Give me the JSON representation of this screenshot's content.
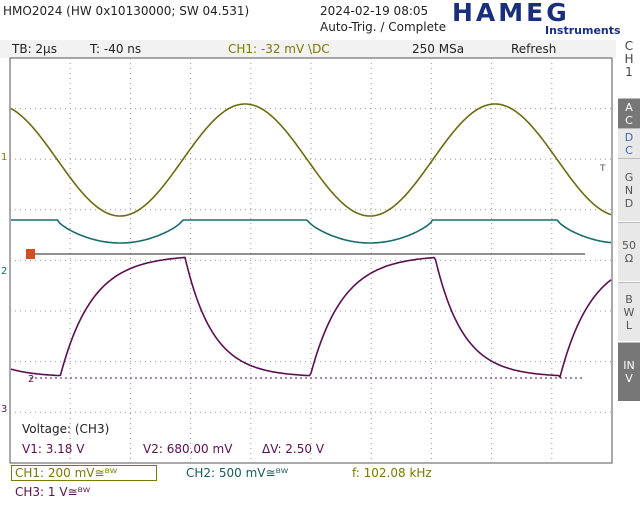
{
  "header": {
    "model": "HMO2024 (HW 0x10130000; SW 04.531)",
    "datetime": "2024-02-19 08:05",
    "trigger_status": "Auto-Trig. / Complete",
    "logo": "HAMEG",
    "logo_sub": "Instruments"
  },
  "status": {
    "timebase": "TB: 2µs",
    "trigger_time": "T: -40 ns",
    "ch1_trigger": "CH1: -32 mV \\DC",
    "sample_rate": "250 MSa",
    "mode": "Refresh"
  },
  "side_menu": {
    "channel": "CH1",
    "items": [
      "AC",
      "DC",
      "GND",
      "50Ω",
      "BWL",
      "INV"
    ]
  },
  "markers": {
    "ch1": "1",
    "ch2": "2",
    "ch3": "3",
    "trigger": "T",
    "cursor": "2"
  },
  "measurement": {
    "title": "Voltage: (CH3)",
    "v1": "V1: 3.18 V",
    "v2": "V2: 680.00 mV",
    "dv": "ΔV: 2.50 V"
  },
  "footer": {
    "ch1": "CH1: 200 mV≅ᴮᵂ",
    "ch2": "CH2: 500 mV≅ᴮᵂ",
    "freq": "f: 102.08 kHz",
    "ch3": "CH3: 1 V≅ᴮᵂ"
  }
}
